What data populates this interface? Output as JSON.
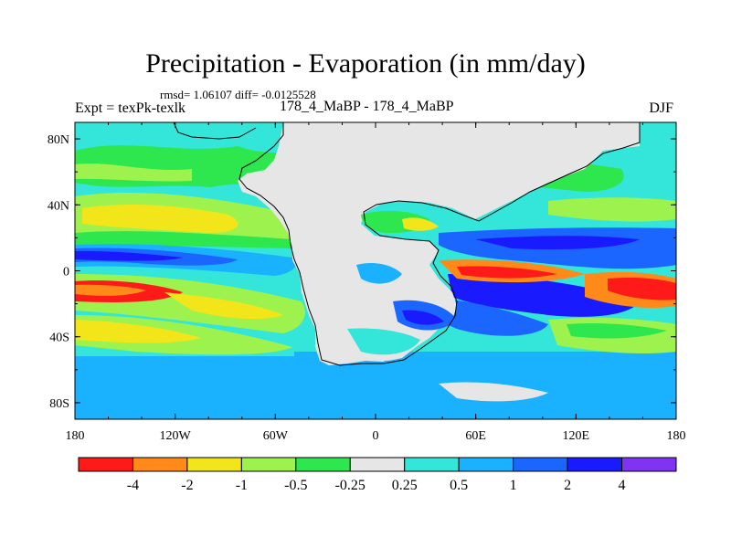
{
  "figure": {
    "title": "Precipitation - Evaporation (in mm/day)",
    "stats": "rmsd= 1.06107 diff= -0.0125528",
    "expt": "Expt = texPk-texlk",
    "run": "178_4_MaBP - 178_4_MaBP",
    "season": "DJF"
  },
  "axes": {
    "x_ticks": [
      "180",
      "120W",
      "60W",
      "0",
      "60E",
      "120E",
      "180"
    ],
    "y_ticks": [
      "80N",
      "40N",
      "0",
      "40S",
      "80S"
    ]
  },
  "colorbar": {
    "labels": [
      "-4",
      "-2",
      "-1",
      "-0.5",
      "-0.25",
      "0.25",
      "0.5",
      "1",
      "2",
      "4"
    ],
    "colors": [
      "#ff1a1a",
      "#ff8a1a",
      "#f2e61a",
      "#9ef24d",
      "#2ee64d",
      "#e6e6e6",
      "#33e6d9",
      "#1ab2ff",
      "#1a66ff",
      "#1a1aff",
      "#8033f2"
    ]
  },
  "map_colors": {
    "land": "#e6e6e6",
    "cyan": "#33e6d9",
    "light_blue": "#1ab2ff",
    "blue": "#1a66ff",
    "dark_blue": "#1a1aff",
    "green": "#2ee64d",
    "light_green": "#9ef24d",
    "yellow": "#f2e61a",
    "orange": "#ff8a1a",
    "red": "#ff1a1a"
  }
}
